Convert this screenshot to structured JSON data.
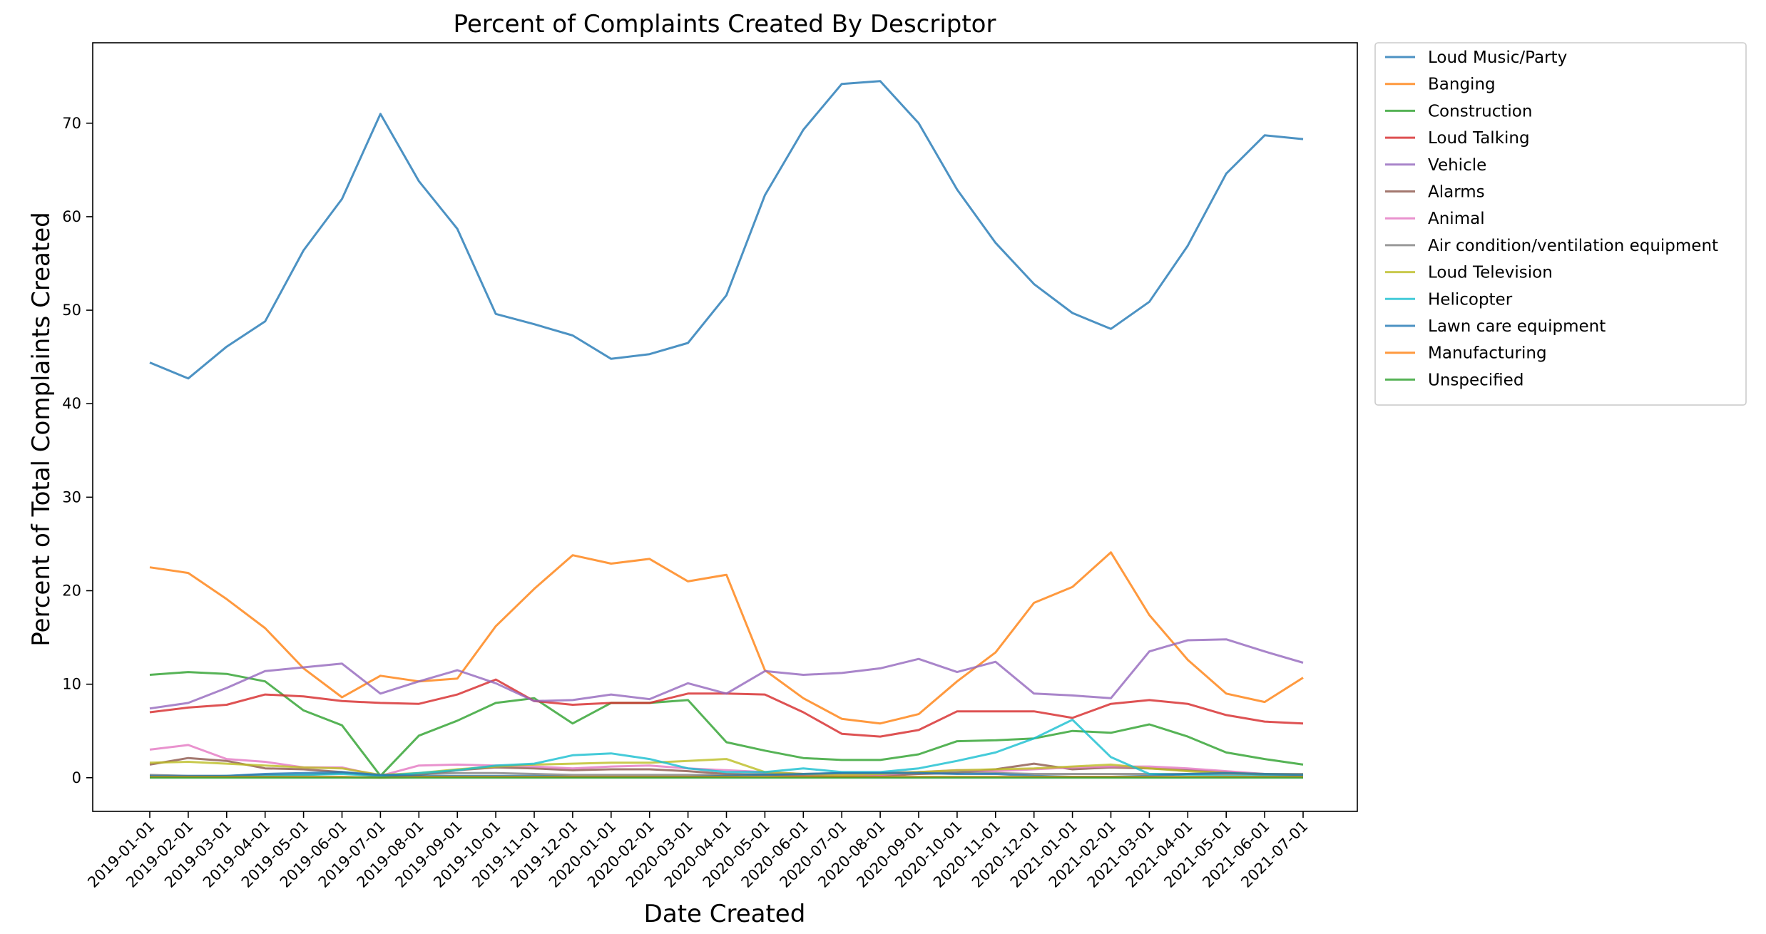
{
  "chart_data": {
    "type": "line",
    "title": "Percent of Complaints Created By Descriptor",
    "xlabel": "Date Created",
    "ylabel": "Percent of Total Complaints Created",
    "ylim": [
      -3.6,
      78.6
    ],
    "yticks": [
      0,
      10,
      20,
      30,
      40,
      50,
      60,
      70
    ],
    "grid": false,
    "legend_placement": "outside-right-top",
    "x": [
      "2019-01-01",
      "2019-02-01",
      "2019-03-01",
      "2019-04-01",
      "2019-05-01",
      "2019-06-01",
      "2019-07-01",
      "2019-08-01",
      "2019-09-01",
      "2019-10-01",
      "2019-11-01",
      "2019-12-01",
      "2020-01-01",
      "2020-02-01",
      "2020-03-01",
      "2020-04-01",
      "2020-05-01",
      "2020-06-01",
      "2020-07-01",
      "2020-08-01",
      "2020-09-01",
      "2020-10-01",
      "2020-11-01",
      "2020-12-01",
      "2021-01-01",
      "2021-02-01",
      "2021-03-01",
      "2021-04-01",
      "2021-05-01",
      "2021-06-01",
      "2021-07-01"
    ],
    "series": [
      {
        "name": "Loud Music/Party",
        "color": "#1f77b4",
        "values": [
          44.4,
          42.7,
          46.1,
          48.8,
          56.4,
          61.9,
          71.0,
          63.8,
          58.7,
          49.6,
          48.5,
          47.3,
          44.8,
          45.3,
          46.5,
          51.6,
          62.3,
          69.3,
          74.2,
          74.5,
          70.0,
          62.9,
          57.2,
          52.8,
          49.7,
          48.0,
          50.9,
          56.9,
          64.6,
          68.7,
          68.3
        ]
      },
      {
        "name": "Banging",
        "color": "#ff7f0e",
        "values": [
          22.5,
          21.9,
          19.1,
          16.0,
          11.7,
          8.6,
          10.9,
          10.3,
          10.6,
          16.2,
          20.2,
          23.8,
          22.9,
          23.4,
          21.0,
          21.7,
          11.5,
          8.5,
          6.3,
          5.8,
          6.8,
          10.3,
          13.4,
          18.7,
          20.4,
          24.1,
          17.4,
          12.6,
          9.0,
          8.1,
          10.7
        ]
      },
      {
        "name": "Construction",
        "color": "#2ca02c",
        "values": [
          11.0,
          11.3,
          11.1,
          10.3,
          7.2,
          5.6,
          0.2,
          4.5,
          6.1,
          8.0,
          8.5,
          5.8,
          8.0,
          8.0,
          8.3,
          3.8,
          2.9,
          2.1,
          1.9,
          1.9,
          2.5,
          3.9,
          4.0,
          4.2,
          5.0,
          4.8,
          5.7,
          4.4,
          2.7,
          2.0,
          1.4
        ]
      },
      {
        "name": "Loud Talking",
        "color": "#d62728",
        "values": [
          7.0,
          7.5,
          7.8,
          8.9,
          8.7,
          8.2,
          8.0,
          7.9,
          8.9,
          10.5,
          8.2,
          7.8,
          8.0,
          8.0,
          9.0,
          9.0,
          8.9,
          7.0,
          4.7,
          4.4,
          5.1,
          7.1,
          7.1,
          7.1,
          6.4,
          7.9,
          8.3,
          7.9,
          6.7,
          6.0,
          5.8
        ]
      },
      {
        "name": "Vehicle",
        "color": "#9467bd",
        "values": [
          7.4,
          8.0,
          9.6,
          11.4,
          11.8,
          12.2,
          9.0,
          10.3,
          11.5,
          10.1,
          8.2,
          8.3,
          8.9,
          8.4,
          10.1,
          9.0,
          11.4,
          11.0,
          11.2,
          11.7,
          12.7,
          11.3,
          12.4,
          9.0,
          8.8,
          8.5,
          13.5,
          14.7,
          14.8,
          13.5,
          12.3
        ]
      },
      {
        "name": "Alarms",
        "color": "#8c564b",
        "values": [
          1.4,
          2.1,
          1.8,
          1.0,
          0.9,
          0.6,
          0.1,
          0.3,
          0.8,
          1.1,
          1.0,
          0.8,
          0.9,
          0.9,
          0.7,
          0.4,
          0.3,
          0.2,
          0.1,
          0.2,
          0.4,
          0.5,
          0.9,
          1.5,
          0.9,
          1.1,
          1.0,
          0.8,
          0.6,
          0.3,
          0.2
        ]
      },
      {
        "name": "Animal",
        "color": "#e377c2",
        "values": [
          3.0,
          3.5,
          2.0,
          1.7,
          1.1,
          1.1,
          0.2,
          1.3,
          1.4,
          1.3,
          1.2,
          1.0,
          1.2,
          1.3,
          1.0,
          0.8,
          0.6,
          0.4,
          0.3,
          0.3,
          0.6,
          0.8,
          0.7,
          0.9,
          1.1,
          1.2,
          1.2,
          1.0,
          0.7,
          0.4,
          0.3
        ]
      },
      {
        "name": "Air condition/ventilation equipment",
        "color": "#7f7f7f",
        "values": [
          0.3,
          0.2,
          0.2,
          0.3,
          0.3,
          0.5,
          0.3,
          0.4,
          0.5,
          0.5,
          0.4,
          0.3,
          0.3,
          0.3,
          0.3,
          0.3,
          0.4,
          0.4,
          0.5,
          0.5,
          0.6,
          0.6,
          0.5,
          0.4,
          0.4,
          0.4,
          0.4,
          0.4,
          0.4,
          0.4,
          0.4
        ]
      },
      {
        "name": "Loud Television",
        "color": "#bcbd22",
        "values": [
          1.6,
          1.7,
          1.5,
          1.3,
          1.1,
          1.0,
          0.3,
          0.5,
          0.9,
          1.2,
          1.4,
          1.5,
          1.6,
          1.6,
          1.8,
          2.0,
          0.6,
          0.4,
          0.3,
          0.4,
          0.6,
          0.8,
          0.9,
          1.0,
          1.2,
          1.4,
          1.0,
          0.7,
          0.5,
          0.4,
          0.3
        ]
      },
      {
        "name": "Helicopter",
        "color": "#17becf",
        "values": [
          0.1,
          0.1,
          0.2,
          0.2,
          0.3,
          0.4,
          0.2,
          0.5,
          0.8,
          1.3,
          1.5,
          2.4,
          2.6,
          2.0,
          1.0,
          0.6,
          0.6,
          1.0,
          0.6,
          0.6,
          1.0,
          1.8,
          2.7,
          4.2,
          6.2,
          2.2,
          0.4,
          0.3,
          0.2,
          0.2,
          0.2
        ]
      },
      {
        "name": "Lawn care equipment",
        "color": "#1f77b4",
        "values": [
          0.2,
          0.2,
          0.2,
          0.4,
          0.5,
          0.6,
          0.3,
          0.2,
          0.2,
          0.2,
          0.2,
          0.1,
          0.1,
          0.1,
          0.1,
          0.2,
          0.3,
          0.4,
          0.5,
          0.5,
          0.5,
          0.4,
          0.4,
          0.2,
          0.1,
          0.1,
          0.2,
          0.4,
          0.5,
          0.4,
          0.3
        ]
      },
      {
        "name": "Manufacturing",
        "color": "#ff7f0e",
        "values": [
          0.1,
          0.1,
          0.1,
          0.1,
          0.1,
          0.1,
          0.0,
          0.1,
          0.1,
          0.1,
          0.1,
          0.1,
          0.1,
          0.1,
          0.1,
          0.1,
          0.1,
          0.1,
          0.1,
          0.1,
          0.1,
          0.1,
          0.1,
          0.1,
          0.1,
          0.1,
          0.1,
          0.1,
          0.1,
          0.1,
          0.1
        ]
      },
      {
        "name": "Unspecified",
        "color": "#2ca02c",
        "values": [
          0.0,
          0.0,
          0.0,
          0.0,
          0.0,
          0.0,
          0.0,
          0.0,
          0.0,
          0.0,
          0.0,
          0.0,
          0.0,
          0.0,
          0.0,
          0.0,
          0.0,
          0.0,
          0.0,
          0.0,
          0.0,
          0.0,
          0.0,
          0.0,
          0.0,
          0.0,
          0.0,
          0.0,
          0.0,
          0.0,
          0.0
        ]
      }
    ]
  }
}
